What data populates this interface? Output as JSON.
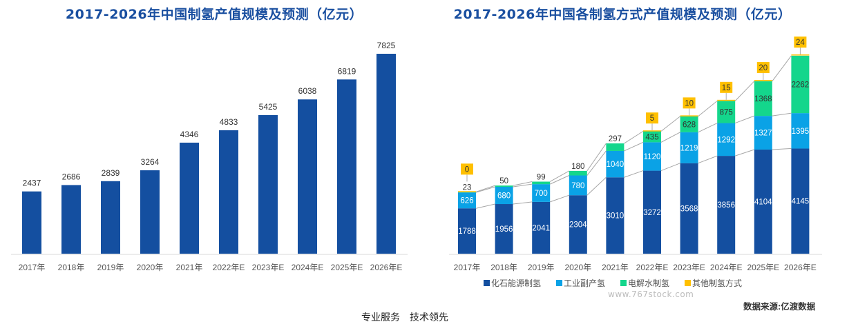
{
  "chart_data": [
    {
      "type": "bar",
      "title": "2017-2026年中国制氢产值规模及预测（亿元）",
      "xlabel": "",
      "ylabel": "",
      "categories": [
        "2017年",
        "2018年",
        "2019年",
        "2020年",
        "2021年",
        "2022年E",
        "2023年E",
        "2024年E",
        "2025年E",
        "2026年E"
      ],
      "values": [
        2437,
        2686,
        2839,
        3264,
        4346,
        4833,
        5425,
        6038,
        6819,
        7825
      ],
      "ylim": [
        0,
        8200
      ],
      "grid": false,
      "color": "#144fa0"
    },
    {
      "type": "bar",
      "stacked": true,
      "title": "2017-2026年中国各制氢方式产值规模及预测（亿元）",
      "xlabel": "",
      "ylabel": "",
      "categories": [
        "2017年",
        "2018年",
        "2019年",
        "2020年",
        "2021年",
        "2022年E",
        "2023年E",
        "2024年E",
        "2025年E",
        "2026年E"
      ],
      "series": [
        {
          "name": "化石能源制氢",
          "color": "#144fa0",
          "values": [
            1788,
            1956,
            2041,
            2304,
            3010,
            3272,
            3568,
            3856,
            4104,
            4145
          ]
        },
        {
          "name": "工业副产氢",
          "color": "#0aa2e6",
          "values": [
            626,
            680,
            700,
            780,
            1040,
            1120,
            1219,
            1292,
            1327,
            1395
          ]
        },
        {
          "name": "电解水制氢",
          "color": "#14d68c",
          "values": [
            23,
            50,
            99,
            180,
            297,
            435,
            628,
            875,
            1368,
            2262
          ]
        },
        {
          "name": "其他制氢方式",
          "color": "#ffc000",
          "values": [
            0,
            null,
            null,
            null,
            null,
            5,
            10,
            15,
            20,
            24
          ]
        }
      ],
      "ylim": [
        0,
        8200
      ],
      "grid": false,
      "legend_position": "bottom"
    }
  ],
  "source": "数据来源:亿渡数据",
  "watermark": "www.767stock.com",
  "footer_partial": "专业服务　技术领先"
}
